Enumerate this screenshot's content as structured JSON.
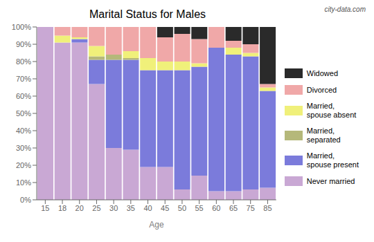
{
  "chart_data": {
    "type": "bar",
    "title": "Marital Status for Males",
    "xlabel": "Age",
    "annotations": [
      "city-data.com"
    ],
    "categories": [
      "15",
      "18",
      "20",
      "25",
      "30",
      "35",
      "40",
      "45",
      "50",
      "55",
      "60",
      "65",
      "75",
      "85"
    ],
    "stacked": true,
    "series": [
      {
        "name": "Never married",
        "color": "#c9a8d4",
        "values": [
          100,
          91,
          91,
          67,
          30,
          29,
          19,
          19,
          6,
          14,
          5,
          5,
          6,
          7
        ]
      },
      {
        "name": "Married,\nspouse present",
        "color": "#7b7bdb",
        "values": [
          0,
          0,
          2,
          14,
          51,
          52,
          56,
          56,
          69,
          63,
          83,
          79,
          77,
          56
        ]
      },
      {
        "name": "Married,\nseparated",
        "color": "#b5b87a",
        "values": [
          0,
          0,
          0,
          2,
          3,
          1,
          0,
          0,
          0,
          0,
          0,
          0,
          0,
          0
        ]
      },
      {
        "name": "Married,\nspouse absent",
        "color": "#f0f07a",
        "values": [
          0,
          4,
          1,
          6,
          0,
          4,
          7,
          5,
          5,
          2,
          0,
          4,
          2,
          2
        ]
      },
      {
        "name": "Divorced",
        "color": "#f0a8a8",
        "values": [
          0,
          5,
          6,
          11,
          16,
          14,
          18,
          14,
          16,
          14,
          12,
          4,
          5,
          2
        ]
      },
      {
        "name": "Widowed",
        "color": "#2a2a2a",
        "values": [
          0,
          0,
          0,
          0,
          0,
          0,
          0,
          6,
          4,
          7,
          0,
          8,
          10,
          33
        ]
      }
    ],
    "ylim": [
      0,
      100
    ],
    "yticks": [
      {
        "value": 0,
        "label": "0%"
      },
      {
        "value": 10,
        "label": "10%"
      },
      {
        "value": 20,
        "label": "20%"
      },
      {
        "value": 30,
        "label": "30%"
      },
      {
        "value": 40,
        "label": "40%"
      },
      {
        "value": 50,
        "label": "50%"
      },
      {
        "value": 60,
        "label": "60%"
      },
      {
        "value": 70,
        "label": "70%"
      },
      {
        "value": 80,
        "label": "80%"
      },
      {
        "value": 90,
        "label": "90%"
      },
      {
        "value": 100,
        "label": "100%"
      }
    ],
    "grid": false,
    "legend": "right"
  }
}
